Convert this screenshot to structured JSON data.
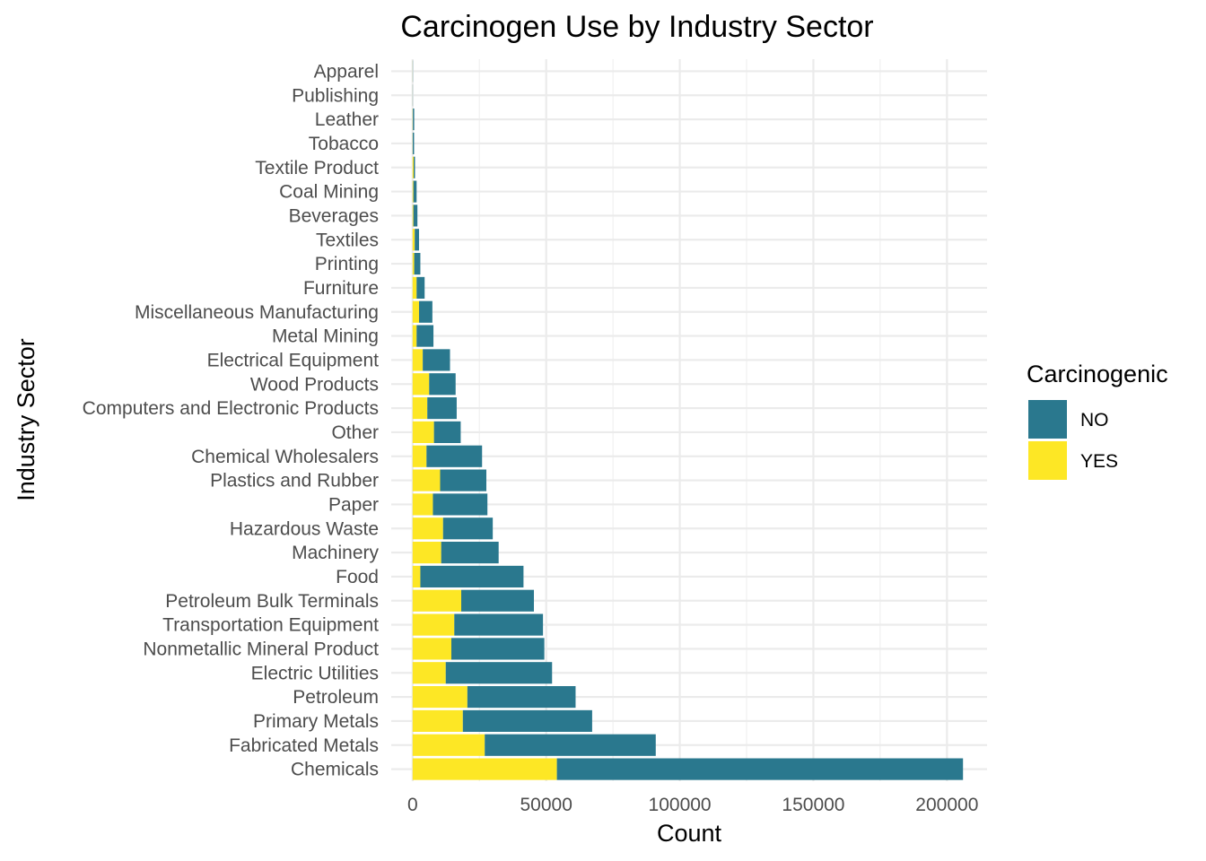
{
  "chart_data": {
    "type": "bar",
    "orientation": "horizontal",
    "stacked": true,
    "title": "Carcinogen Use by Industry Sector",
    "xlabel": "Count",
    "ylabel": "Industry Sector",
    "xlim": [
      -8000,
      215000
    ],
    "xticks": [
      0,
      50000,
      100000,
      150000,
      200000
    ],
    "xtick_labels": [
      "0",
      "50000",
      "100000",
      "150000",
      "200000"
    ],
    "grid": true,
    "legend_position": "right",
    "legend": {
      "title": "Carcinogenic",
      "entries": [
        {
          "label": "NO",
          "color": "#2a788e"
        },
        {
          "label": "YES",
          "color": "#fde725"
        }
      ]
    },
    "categories": [
      "Apparel",
      "Publishing",
      "Leather",
      "Tobacco",
      "Textile Product",
      "Coal Mining",
      "Beverages",
      "Textiles",
      "Printing",
      "Furniture",
      "Miscellaneous Manufacturing",
      "Metal Mining",
      "Electrical Equipment",
      "Wood Products",
      "Computers and Electronic Products",
      "Other",
      "Chemical Wholesalers",
      "Plastics and Rubber",
      "Paper",
      "Hazardous Waste",
      "Machinery",
      "Food",
      "Petroleum Bulk Terminals",
      "Transportation Equipment",
      "Nonmetallic Mineral Product",
      "Electric Utilities",
      "Petroleum",
      "Primary Metals",
      "Fabricated Metals",
      "Chemicals"
    ],
    "series": [
      {
        "name": "YES",
        "color": "#fde725",
        "values": [
          30,
          20,
          100,
          50,
          400,
          300,
          300,
          800,
          600,
          1500,
          2400,
          1500,
          3800,
          6200,
          5500,
          8000,
          5200,
          10300,
          7600,
          11400,
          10700,
          2900,
          18200,
          15600,
          14500,
          12400,
          20500,
          18800,
          27000,
          54000
        ]
      },
      {
        "name": "NO",
        "color": "#2a788e",
        "values": [
          80,
          70,
          500,
          500,
          500,
          1200,
          1500,
          1600,
          2300,
          3000,
          5000,
          6300,
          10200,
          9900,
          11000,
          10000,
          20800,
          17300,
          20400,
          18600,
          21500,
          38600,
          27200,
          33200,
          34800,
          39800,
          40500,
          48400,
          64000,
          152000
        ]
      }
    ]
  }
}
